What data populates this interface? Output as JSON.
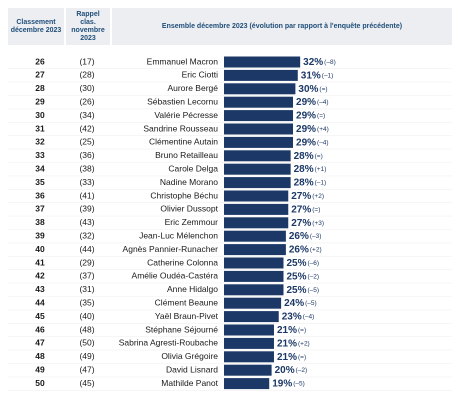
{
  "chart_data": {
    "type": "bar",
    "orientation": "horizontal",
    "color": "#1c3866",
    "headers": [
      "Classement décembre 2023",
      "Rappel clas. novembre 2023",
      "Ensemble décembre 2023 (évolution par rapport à l'enquête précédente)"
    ],
    "ranks": [
      26,
      27,
      28,
      29,
      30,
      31,
      32,
      33,
      34,
      35,
      36,
      37,
      38,
      39,
      40,
      41,
      42,
      43,
      44,
      45,
      46,
      47,
      48,
      49,
      50
    ],
    "previous_ranks": [
      "(17)",
      "(28)",
      "(30)",
      "(26)",
      "(34)",
      "(42)",
      "(25)",
      "(36)",
      "(38)",
      "(33)",
      "(41)",
      "(39)",
      "(43)",
      "(32)",
      "(44)",
      "(29)",
      "(37)",
      "(31)",
      "(35)",
      "(40)",
      "(48)",
      "(50)",
      "(49)",
      "(47)",
      "(45)"
    ],
    "categories": [
      "Emmanuel Macron",
      "Eric Ciotti",
      "Aurore Bergé",
      "Sébastien Lecornu",
      "Valérie Pécresse",
      "Sandrine Rousseau",
      "Clémentine Autain",
      "Bruno Retailleau",
      "Carole Delga",
      "Nadine Morano",
      "Christophe Béchu",
      "Olivier Dussopt",
      "Eric Zemmour",
      "Jean-Luc Mélenchon",
      "Agnès Pannier-Runacher",
      "Catherine Colonna",
      "Amélie Oudéa-Castéra",
      "Anne Hidalgo",
      "Clément Beaune",
      "Yaël Braun-Pivet",
      "Stéphane Séjourné",
      "Sabrina Agresti-Roubache",
      "Olivia Grégoire",
      "David Lisnard",
      "Mathilde Panot"
    ],
    "values": [
      32,
      31,
      30,
      29,
      29,
      29,
      29,
      28,
      28,
      28,
      27,
      27,
      27,
      26,
      26,
      25,
      25,
      25,
      24,
      23,
      21,
      21,
      21,
      20,
      19
    ],
    "value_labels": [
      "32%",
      "31%",
      "30%",
      "29%",
      "29%",
      "29%",
      "29%",
      "28%",
      "28%",
      "28%",
      "27%",
      "27%",
      "27%",
      "26%",
      "26%",
      "25%",
      "25%",
      "25%",
      "24%",
      "23%",
      "21%",
      "21%",
      "21%",
      "20%",
      "19%"
    ],
    "changes": [
      "(–8)",
      "(–1)",
      "(=)",
      "(–4)",
      "(=)",
      "(+4)",
      "(–4)",
      "(=)",
      "(+1)",
      "(–1)",
      "(+2)",
      "(=)",
      "(+3)",
      "(–3)",
      "(+2)",
      "(–6)",
      "(–2)",
      "(–5)",
      "(–5)",
      "(–4)",
      "(=)",
      "(+2)",
      "(=)",
      "(–2)",
      "(–5)"
    ]
  }
}
